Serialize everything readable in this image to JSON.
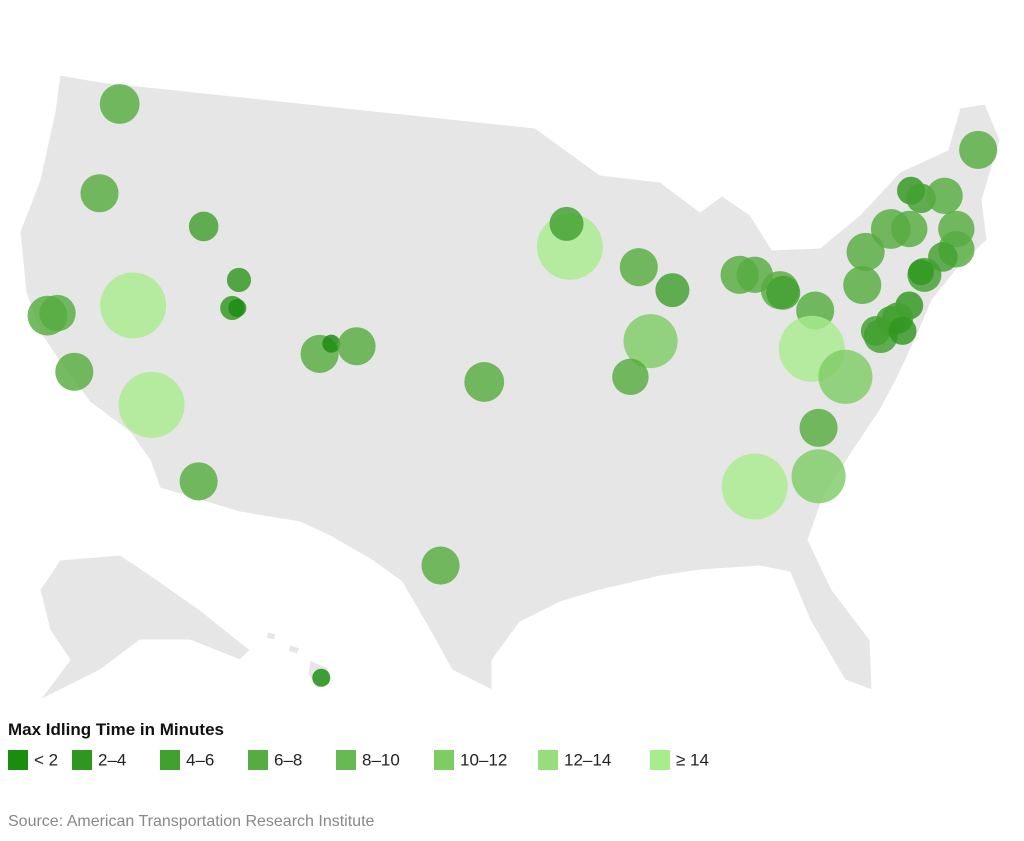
{
  "chart_data": {
    "type": "bubble-map",
    "legend_title": "Max Idling Time in Minutes",
    "legend": [
      {
        "label": "< 2",
        "color": "#1a8c0f"
      },
      {
        "label": "2–4",
        "color": "#2f961f"
      },
      {
        "label": "4–6",
        "color": "#42a030"
      },
      {
        "label": "6–8",
        "color": "#55ac40"
      },
      {
        "label": "8–10",
        "color": "#66b953"
      },
      {
        "label": "10–12",
        "color": "#7fcc65"
      },
      {
        "label": "12–14",
        "color": "#97dd7d"
      },
      {
        "label": "≥ 14",
        "color": "#a9ec8d"
      }
    ],
    "bins": [
      2,
      4,
      6,
      8,
      10,
      12,
      14
    ],
    "points": [
      {
        "lon": -122.2,
        "lat": 47.6,
        "value": 7
      },
      {
        "lon": -123.4,
        "lat": 44.1,
        "value": 6.5
      },
      {
        "lon": -117.2,
        "lat": 42.8,
        "value": 4
      },
      {
        "lon": -115.1,
        "lat": 40.7,
        "value": 2.4
      },
      {
        "lon": -115.5,
        "lat": 39.6,
        "value": 2.4
      },
      {
        "lon": -115.2,
        "lat": 39.6,
        "value": 0.6
      },
      {
        "lon": -121.4,
        "lat": 39.7,
        "value": 14.7
      },
      {
        "lon": -126.5,
        "lat": 39.3,
        "value": 7
      },
      {
        "lon": -125.9,
        "lat": 39.4,
        "value": 6
      },
      {
        "lon": -124.9,
        "lat": 37.1,
        "value": 6.5
      },
      {
        "lon": -120.3,
        "lat": 35.8,
        "value": 14.7
      },
      {
        "lon": -117.5,
        "lat": 32.8,
        "value": 6.5
      },
      {
        "lon": -110.3,
        "lat": 37.8,
        "value": 6.5
      },
      {
        "lon": -109.6,
        "lat": 38.2,
        "value": 0.6
      },
      {
        "lon": -108.1,
        "lat": 38.1,
        "value": 6.5
      },
      {
        "lon": -100.5,
        "lat": 36.7,
        "value": 7
      },
      {
        "lon": -103.1,
        "lat": 29.5,
        "value": 6.5
      },
      {
        "lon": -110.2,
        "lat": 25.1,
        "value": 0.6
      },
      {
        "lon": -95.4,
        "lat": 42.0,
        "value": 14.7
      },
      {
        "lon": -95.6,
        "lat": 42.9,
        "value": 5.3
      },
      {
        "lon": -91.3,
        "lat": 41.2,
        "value": 6.5
      },
      {
        "lon": -89.3,
        "lat": 40.3,
        "value": 5.3
      },
      {
        "lon": -90.6,
        "lat": 38.3,
        "value": 11.2
      },
      {
        "lon": -91.8,
        "lat": 36.9,
        "value": 6
      },
      {
        "lon": -85.3,
        "lat": 40.9,
        "value": 6.5
      },
      {
        "lon": -84.4,
        "lat": 40.9,
        "value": 6
      },
      {
        "lon": -82.9,
        "lat": 40.3,
        "value": 6.5
      },
      {
        "lon": -82.7,
        "lat": 40.2,
        "value": 5.3
      },
      {
        "lon": -80.8,
        "lat": 39.5,
        "value": 6.5
      },
      {
        "lon": -81.0,
        "lat": 38.0,
        "value": 14.7
      },
      {
        "lon": -79.0,
        "lat": 36.9,
        "value": 11.2
      },
      {
        "lon": -80.6,
        "lat": 34.9,
        "value": 6.5
      },
      {
        "lon": -80.6,
        "lat": 33.0,
        "value": 11.2
      },
      {
        "lon": -84.4,
        "lat": 32.6,
        "value": 14.7
      },
      {
        "lon": -77.8,
        "lat": 41.8,
        "value": 6.5
      },
      {
        "lon": -78.0,
        "lat": 40.5,
        "value": 6.5
      },
      {
        "lon": -76.3,
        "lat": 42.7,
        "value": 7
      },
      {
        "lon": -75.2,
        "lat": 42.7,
        "value": 6
      },
      {
        "lon": -75.1,
        "lat": 44.2,
        "value": 3.5
      },
      {
        "lon": -74.5,
        "lat": 43.9,
        "value": 4
      },
      {
        "lon": -73.1,
        "lat": 44.0,
        "value": 6
      },
      {
        "lon": -72.4,
        "lat": 42.7,
        "value": 6
      },
      {
        "lon": -72.4,
        "lat": 41.9,
        "value": 6
      },
      {
        "lon": -73.2,
        "lat": 41.6,
        "value": 4
      },
      {
        "lon": -71.1,
        "lat": 45.8,
        "value": 6.5
      },
      {
        "lon": -74.3,
        "lat": 40.9,
        "value": 5.3
      },
      {
        "lon": -74.5,
        "lat": 41.0,
        "value": 2.9
      },
      {
        "lon": -75.2,
        "lat": 39.7,
        "value": 3.5
      },
      {
        "lon": -75.9,
        "lat": 39.2,
        "value": 4.5
      },
      {
        "lon": -76.3,
        "lat": 39.1,
        "value": 4
      },
      {
        "lon": -76.9,
        "lat": 38.5,
        "value": 5.3
      },
      {
        "lon": -77.2,
        "lat": 38.7,
        "value": 4
      },
      {
        "lon": -75.6,
        "lat": 38.7,
        "value": 3.5
      }
    ],
    "source": "Source: American Transportation Research Institute"
  }
}
